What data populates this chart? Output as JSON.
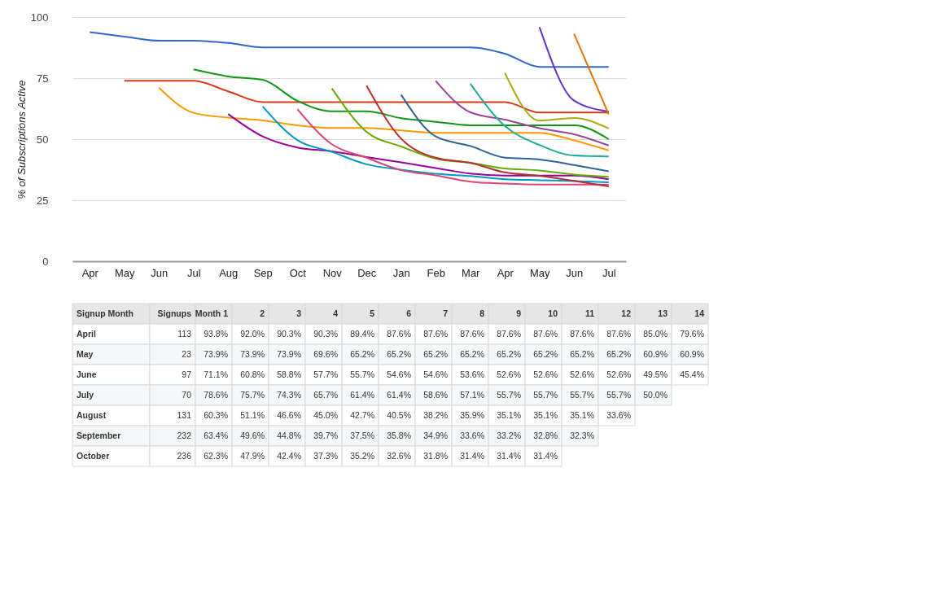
{
  "chart_data": [
    {
      "type": "line",
      "ylabel": "% of Subscriptions Active",
      "categories": [
        "Apr",
        "May",
        "Jun",
        "Jul",
        "Aug",
        "Sep",
        "Oct",
        "Nov",
        "Dec",
        "Jan",
        "Feb",
        "Mar",
        "Apr",
        "May",
        "Jun",
        "Jul"
      ],
      "ylim": [
        0,
        100
      ],
      "yticks": [
        0,
        25,
        50,
        75,
        100
      ],
      "grid": "y",
      "legend": false,
      "series": [
        {
          "color": "#3366cc",
          "values": [
            93.8,
            92.0,
            90.3,
            90.3,
            89.4,
            87.6,
            87.6,
            87.6,
            87.6,
            87.6,
            87.6,
            87.6,
            85.0,
            79.6,
            79.6,
            79.6
          ]
        },
        {
          "color": "#dc3912",
          "values": [
            null,
            73.9,
            73.9,
            73.9,
            69.6,
            65.2,
            65.2,
            65.2,
            65.2,
            65.2,
            65.2,
            65.2,
            65.2,
            60.9,
            60.9,
            60.9
          ]
        },
        {
          "color": "#ff9900",
          "values": [
            null,
            null,
            71.1,
            60.8,
            58.8,
            57.7,
            55.7,
            54.6,
            54.6,
            53.6,
            52.6,
            52.6,
            52.6,
            52.6,
            49.5,
            45.4
          ]
        },
        {
          "color": "#109618",
          "values": [
            null,
            null,
            null,
            78.6,
            75.7,
            74.3,
            65.7,
            61.4,
            61.4,
            58.6,
            57.1,
            55.7,
            55.7,
            55.7,
            55.7,
            50.0
          ]
        },
        {
          "color": "#990099",
          "values": [
            null,
            null,
            null,
            null,
            60.3,
            51.1,
            46.6,
            45.0,
            42.7,
            40.5,
            38.2,
            35.9,
            35.1,
            35.1,
            35.1,
            33.6
          ]
        },
        {
          "color": "#0099c6",
          "values": [
            null,
            null,
            null,
            null,
            null,
            63.4,
            49.6,
            44.8,
            39.7,
            37.5,
            35.8,
            34.9,
            33.6,
            33.2,
            32.8,
            32.3
          ]
        },
        {
          "color": "#dd4477",
          "values": [
            null,
            null,
            null,
            null,
            null,
            null,
            62.3,
            47.9,
            42.4,
            37.3,
            35.2,
            32.6,
            31.8,
            31.4,
            31.4,
            31.4
          ]
        },
        {
          "color": "#66aa00",
          "values": [
            null,
            null,
            null,
            null,
            null,
            null,
            null,
            70.8,
            53,
            47,
            42,
            40.3,
            38,
            37.2,
            35.5,
            34.6
          ]
        },
        {
          "color": "#b82e2e",
          "values": [
            null,
            null,
            null,
            null,
            null,
            null,
            null,
            null,
            71.9,
            50.2,
            42.4,
            40.3,
            36.4,
            35,
            32.9,
            30.7
          ]
        },
        {
          "color": "#316395",
          "values": [
            null,
            null,
            null,
            null,
            null,
            null,
            null,
            null,
            null,
            68.2,
            51.1,
            47.2,
            42.4,
            41.7,
            39.4,
            36.8
          ]
        },
        {
          "color": "#994499",
          "values": [
            null,
            null,
            null,
            null,
            null,
            null,
            null,
            null,
            null,
            null,
            73.9,
            61,
            58,
            54.5,
            52,
            47.4
          ]
        },
        {
          "color": "#22aa99",
          "values": [
            null,
            null,
            null,
            null,
            null,
            null,
            null,
            null,
            null,
            null,
            null,
            72.7,
            55.4,
            47.6,
            43.3,
            42.9
          ]
        },
        {
          "color": "#aaaa11",
          "values": [
            null,
            null,
            null,
            null,
            null,
            null,
            null,
            null,
            null,
            null,
            null,
            null,
            77.1,
            57.6,
            58.7,
            54.4
          ]
        },
        {
          "color": "#6633cc",
          "values": [
            null,
            null,
            null,
            null,
            null,
            null,
            null,
            null,
            null,
            null,
            null,
            null,
            null,
            95.9,
            65.8,
            61.3
          ]
        },
        {
          "color": "#e67300",
          "values": [
            null,
            null,
            null,
            null,
            null,
            null,
            null,
            null,
            null,
            null,
            null,
            null,
            null,
            null,
            93.1,
            60.2
          ]
        }
      ]
    },
    {
      "type": "other",
      "categories": [
        "Signup Month",
        "Signups",
        "Month 1",
        "2",
        "3",
        "4",
        "5",
        "6",
        "7",
        "8",
        "9",
        "10",
        "11",
        "12",
        "13",
        "14"
      ],
      "y_categories": [
        "April",
        "May",
        "June",
        "July",
        "August",
        "September",
        "October"
      ],
      "cell_labels": [
        [
          "113",
          "93.8%",
          "92.0%",
          "90.3%",
          "90.3%",
          "89.4%",
          "87.6%",
          "87.6%",
          "87.6%",
          "87.6%",
          "87.6%",
          "87.6%",
          "87.6%",
          "85.0%",
          "79.6%"
        ],
        [
          "23",
          "73.9%",
          "73.9%",
          "73.9%",
          "69.6%",
          "65.2%",
          "65.2%",
          "65.2%",
          "65.2%",
          "65.2%",
          "65.2%",
          "65.2%",
          "65.2%",
          "60.9%",
          "60.9%"
        ],
        [
          "97",
          "71.1%",
          "60.8%",
          "58.8%",
          "57.7%",
          "55.7%",
          "54.6%",
          "54.6%",
          "53.6%",
          "52.6%",
          "52.6%",
          "52.6%",
          "52.6%",
          "49.5%",
          "45.4%"
        ],
        [
          "70",
          "78.6%",
          "75.7%",
          "74.3%",
          "65.7%",
          "61.4%",
          "61.4%",
          "58.6%",
          "57.1%",
          "55.7%",
          "55.7%",
          "55.7%",
          "55.7%",
          "50.0%",
          null
        ],
        [
          "131",
          "60.3%",
          "51.1%",
          "46.6%",
          "45.0%",
          "42.7%",
          "40.5%",
          "38.2%",
          "35.9%",
          "35.1%",
          "35.1%",
          "35.1%",
          "33.6%",
          null,
          null
        ],
        [
          "232",
          "63.4%",
          "49.6%",
          "44.8%",
          "39.7%",
          "37.5%",
          "35.8%",
          "34.9%",
          "33.6%",
          "33.2%",
          "32.8%",
          "32.3%",
          null,
          null,
          null
        ],
        [
          "236",
          "62.3%",
          "47.9%",
          "42.4%",
          "37.3%",
          "35.2%",
          "32.6%",
          "31.8%",
          "31.4%",
          "31.4%",
          "31.4%",
          null,
          null,
          null,
          null
        ]
      ]
    }
  ]
}
